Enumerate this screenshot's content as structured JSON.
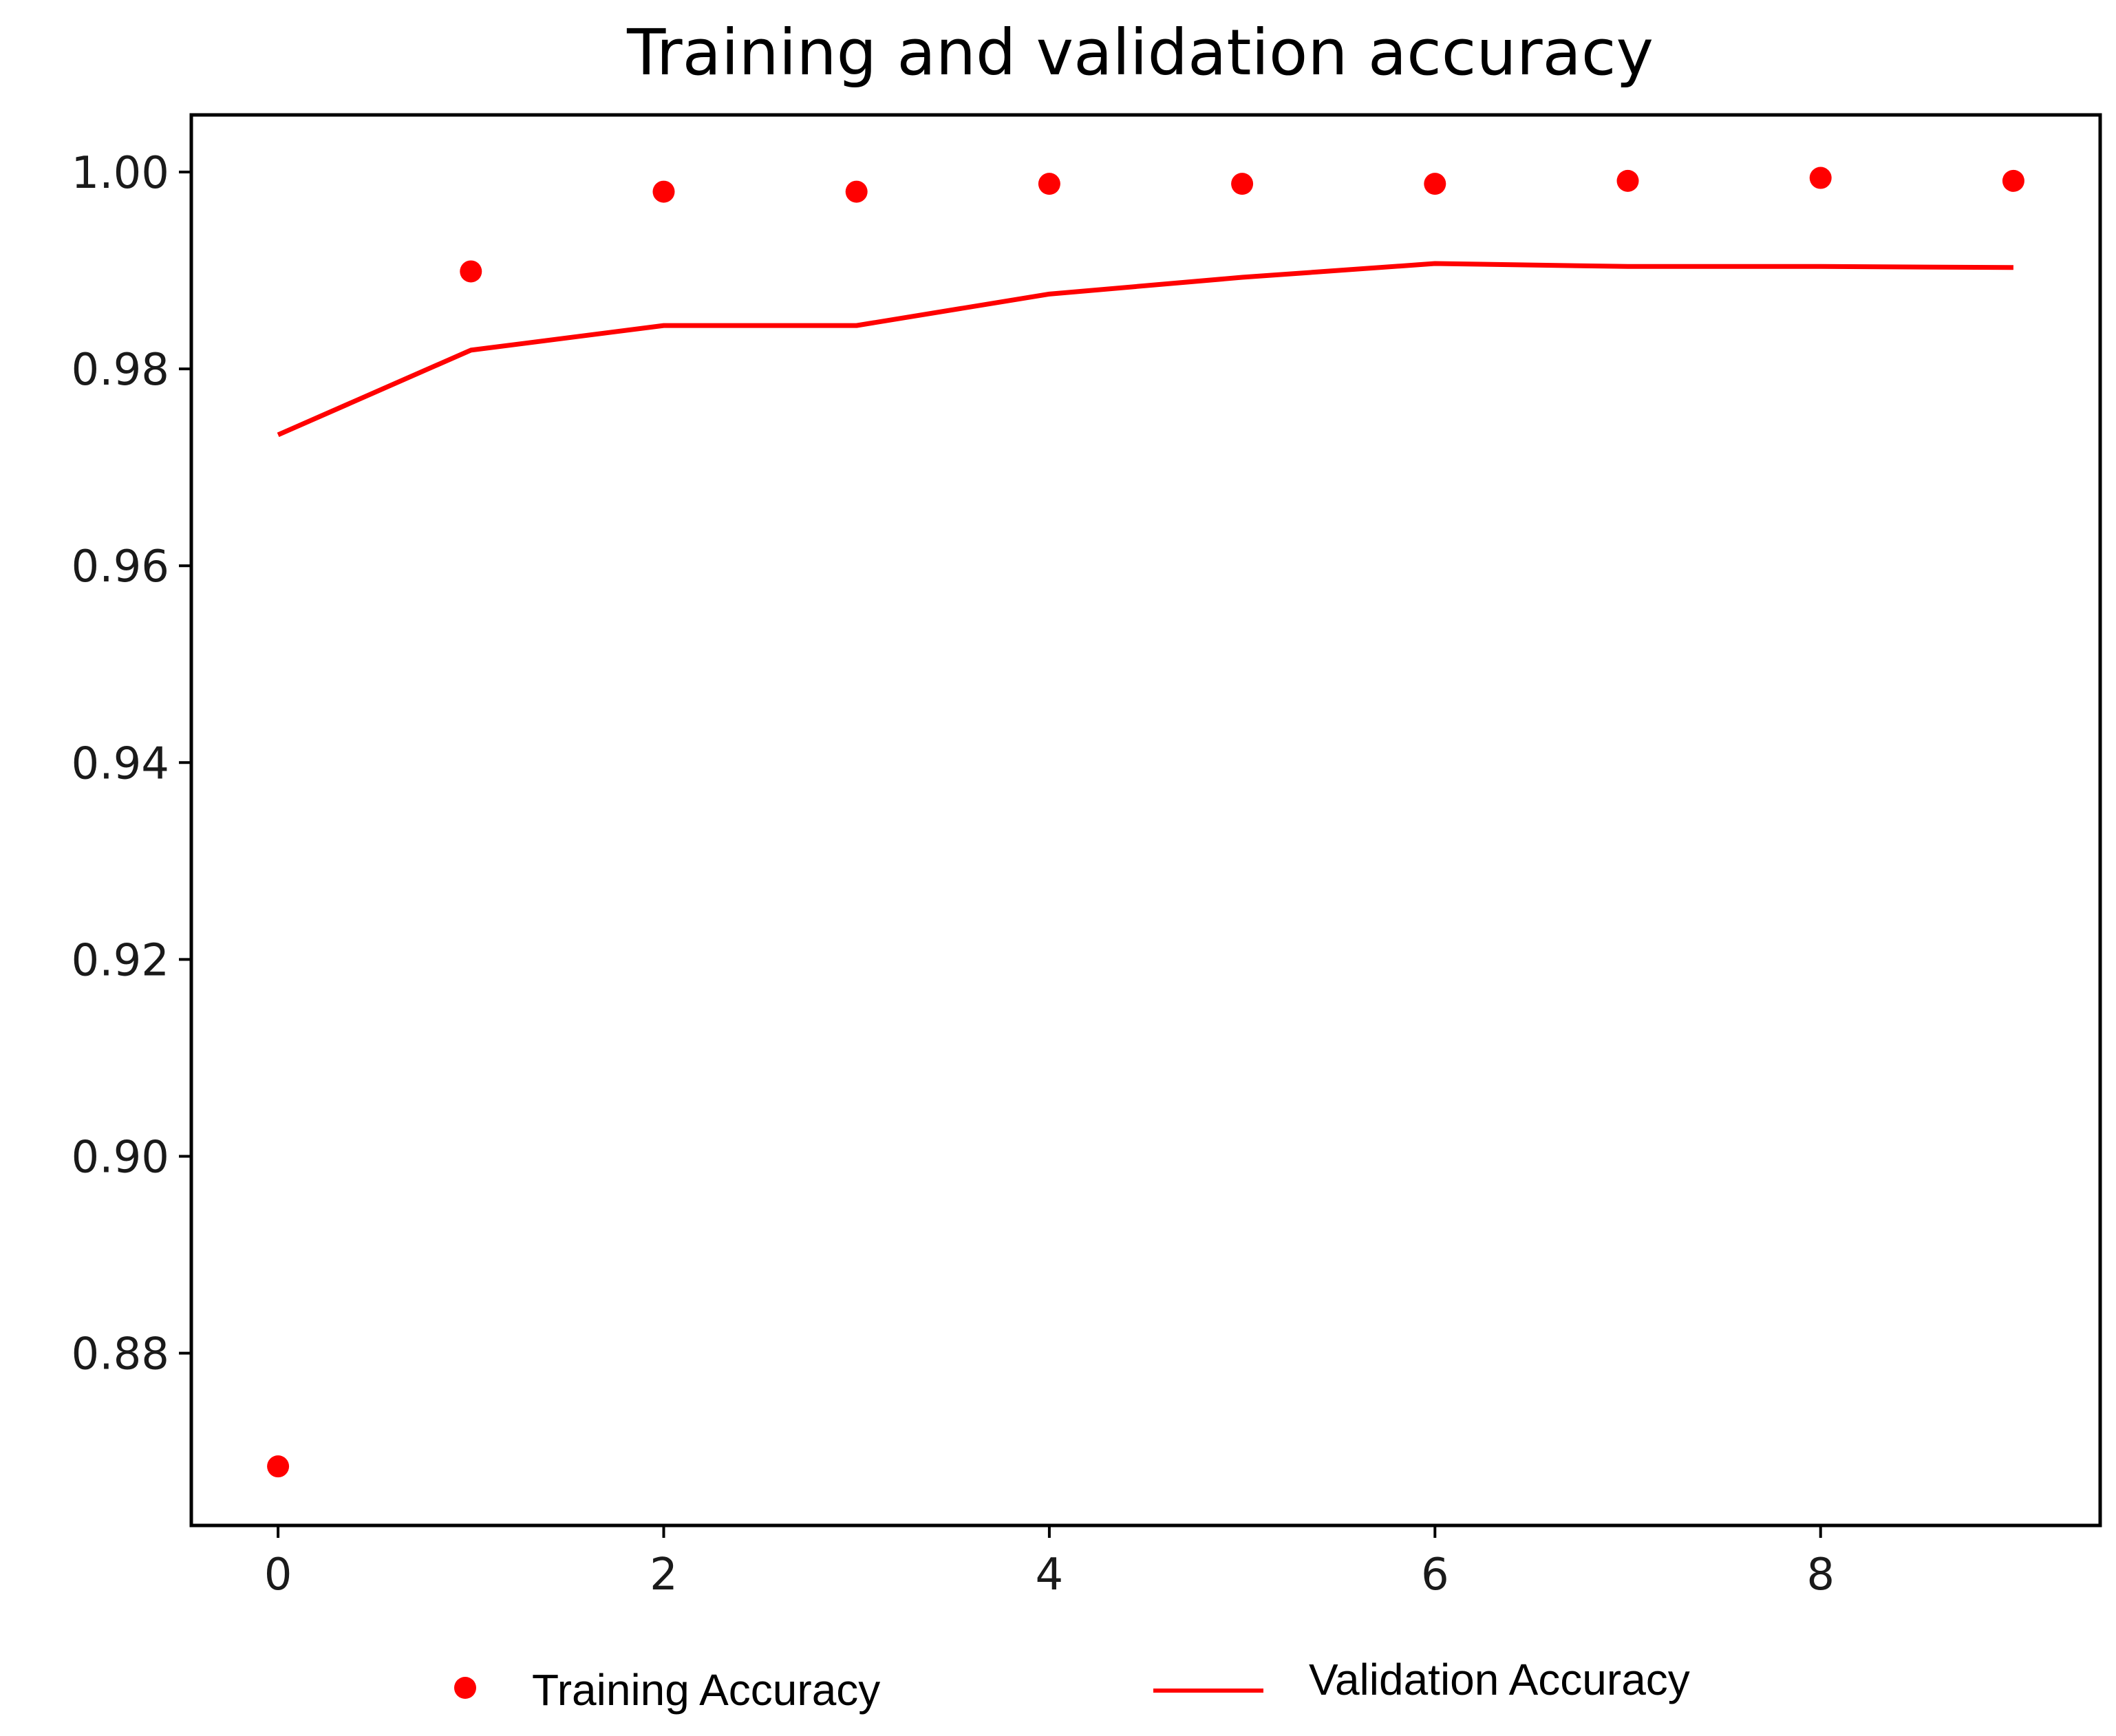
{
  "chart_data": {
    "type": "scatter",
    "title": "Training and validation accuracy",
    "xlabel": "",
    "ylabel": "",
    "xlim": [
      -0.45,
      9.45
    ],
    "ylim": [
      0.8625,
      1.0058
    ],
    "x_ticks": [
      0,
      2,
      4,
      6,
      8
    ],
    "x_tick_labels": [
      "0",
      "2",
      "4",
      "6",
      "8"
    ],
    "y_ticks": [
      0.88,
      0.9,
      0.92,
      0.94,
      0.96,
      0.98,
      1.0
    ],
    "y_tick_labels": [
      "0.88",
      "0.90",
      "0.92",
      "0.94",
      "0.96",
      "0.98",
      "1.00"
    ],
    "grid": false,
    "legend_position": "bottom",
    "x": [
      0,
      1,
      2,
      3,
      4,
      5,
      6,
      7,
      8,
      9
    ],
    "series": [
      {
        "name": "Training Accuracy",
        "style": "markers",
        "color": "#ff0000",
        "values": [
          0.8685,
          0.9899,
          0.998,
          0.998,
          0.9988,
          0.9988,
          0.9988,
          0.9991,
          0.9994,
          0.9991
        ]
      },
      {
        "name": "Validation Accuracy",
        "style": "line",
        "color": "#ff0000",
        "values": [
          0.9733,
          0.9819,
          0.9844,
          0.9844,
          0.9876,
          0.9893,
          0.9907,
          0.9904,
          0.9904,
          0.9903
        ]
      }
    ]
  }
}
